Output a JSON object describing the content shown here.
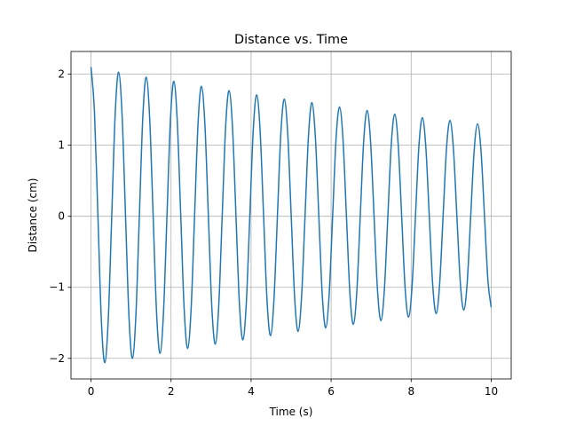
{
  "chart_data": {
    "type": "line",
    "title": "Distance vs. Time",
    "xlabel": "Time (s)",
    "ylabel": "Distance (cm)",
    "x": [
      0,
      0.086,
      0.173,
      0.259,
      0.345,
      0.431,
      0.518,
      0.604,
      0.69,
      0.776,
      0.863,
      0.949,
      1.035,
      1.121,
      1.208,
      1.294,
      1.38,
      1.466,
      1.553,
      1.639,
      1.725,
      1.811,
      1.898,
      1.984,
      2.07,
      2.156,
      2.243,
      2.329,
      2.415,
      2.501,
      2.588,
      2.674,
      2.76,
      2.846,
      2.933,
      3.019,
      3.105,
      3.191,
      3.278,
      3.364,
      3.45,
      3.536,
      3.623,
      3.709,
      3.795,
      3.881,
      3.968,
      4.054,
      4.14,
      4.226,
      4.313,
      4.399,
      4.485,
      4.571,
      4.658,
      4.744,
      4.83,
      4.916,
      5.003,
      5.089,
      5.175,
      5.261,
      5.348,
      5.434,
      5.52,
      5.606,
      5.693,
      5.779,
      5.865,
      5.951,
      6.038,
      6.124,
      6.21,
      6.296,
      6.383,
      6.469,
      6.555,
      6.641,
      6.728,
      6.814,
      6.9,
      6.986,
      7.073,
      7.159,
      7.245,
      7.331,
      7.418,
      7.504,
      7.59,
      7.676,
      7.763,
      7.849,
      7.935,
      8.021,
      8.108,
      8.194,
      8.28,
      8.366,
      8.453,
      8.539,
      8.625,
      8.711,
      8.798,
      8.884,
      8.97,
      9.056,
      9.143,
      9.229,
      9.315,
      9.401,
      9.488,
      9.574,
      9.66,
      9.746,
      9.833,
      9.919,
      10
    ],
    "series": [
      {
        "color": "#1f77b4",
        "values": [
          2.1,
          1.48,
          0,
          -1.47,
          -2.06,
          -1.45,
          0,
          1.44,
          2.03,
          1.43,
          0,
          -1.42,
          -2.0,
          -1.4,
          0,
          1.39,
          1.96,
          1.38,
          0,
          -1.37,
          -1.93,
          -1.36,
          0,
          1.35,
          1.9,
          1.33,
          0,
          -1.32,
          -1.86,
          -1.31,
          0,
          1.3,
          1.83,
          1.29,
          0,
          -1.28,
          -1.8,
          -1.27,
          0,
          1.26,
          1.77,
          1.25,
          0,
          -1.24,
          -1.74,
          -1.22,
          0,
          1.21,
          1.71,
          1.2,
          0,
          -1.19,
          -1.68,
          -1.18,
          0,
          1.17,
          1.65,
          1.16,
          0,
          -1.15,
          -1.62,
          -1.14,
          0,
          1.13,
          1.6,
          1.12,
          0,
          -1.11,
          -1.57,
          -1.1,
          0,
          1.1,
          1.54,
          1.09,
          0,
          -1.08,
          -1.52,
          -1.07,
          0,
          1.06,
          1.49,
          1.05,
          0,
          -1.04,
          -1.47,
          -1.03,
          0,
          1.02,
          1.44,
          1.01,
          0,
          -1.01,
          -1.42,
          -1.0,
          0,
          0.99,
          1.39,
          0.98,
          0,
          -0.97,
          -1.37,
          -0.96,
          0,
          0.96,
          1.35,
          0.95,
          0,
          -0.94,
          -1.32,
          -0.93,
          0,
          0.92,
          1.3,
          0.92,
          0,
          -0.91,
          -1.28
        ]
      }
    ],
    "xlim": [
      -0.5,
      10.5
    ],
    "ylim": [
      -2.29,
      2.32
    ],
    "xticks": [
      0,
      2,
      4,
      6,
      8,
      10
    ],
    "yticks": [
      {
        "value": -2,
        "label": "−2"
      },
      {
        "value": -1,
        "label": "−1"
      },
      0,
      1,
      2
    ],
    "grid": true
  }
}
